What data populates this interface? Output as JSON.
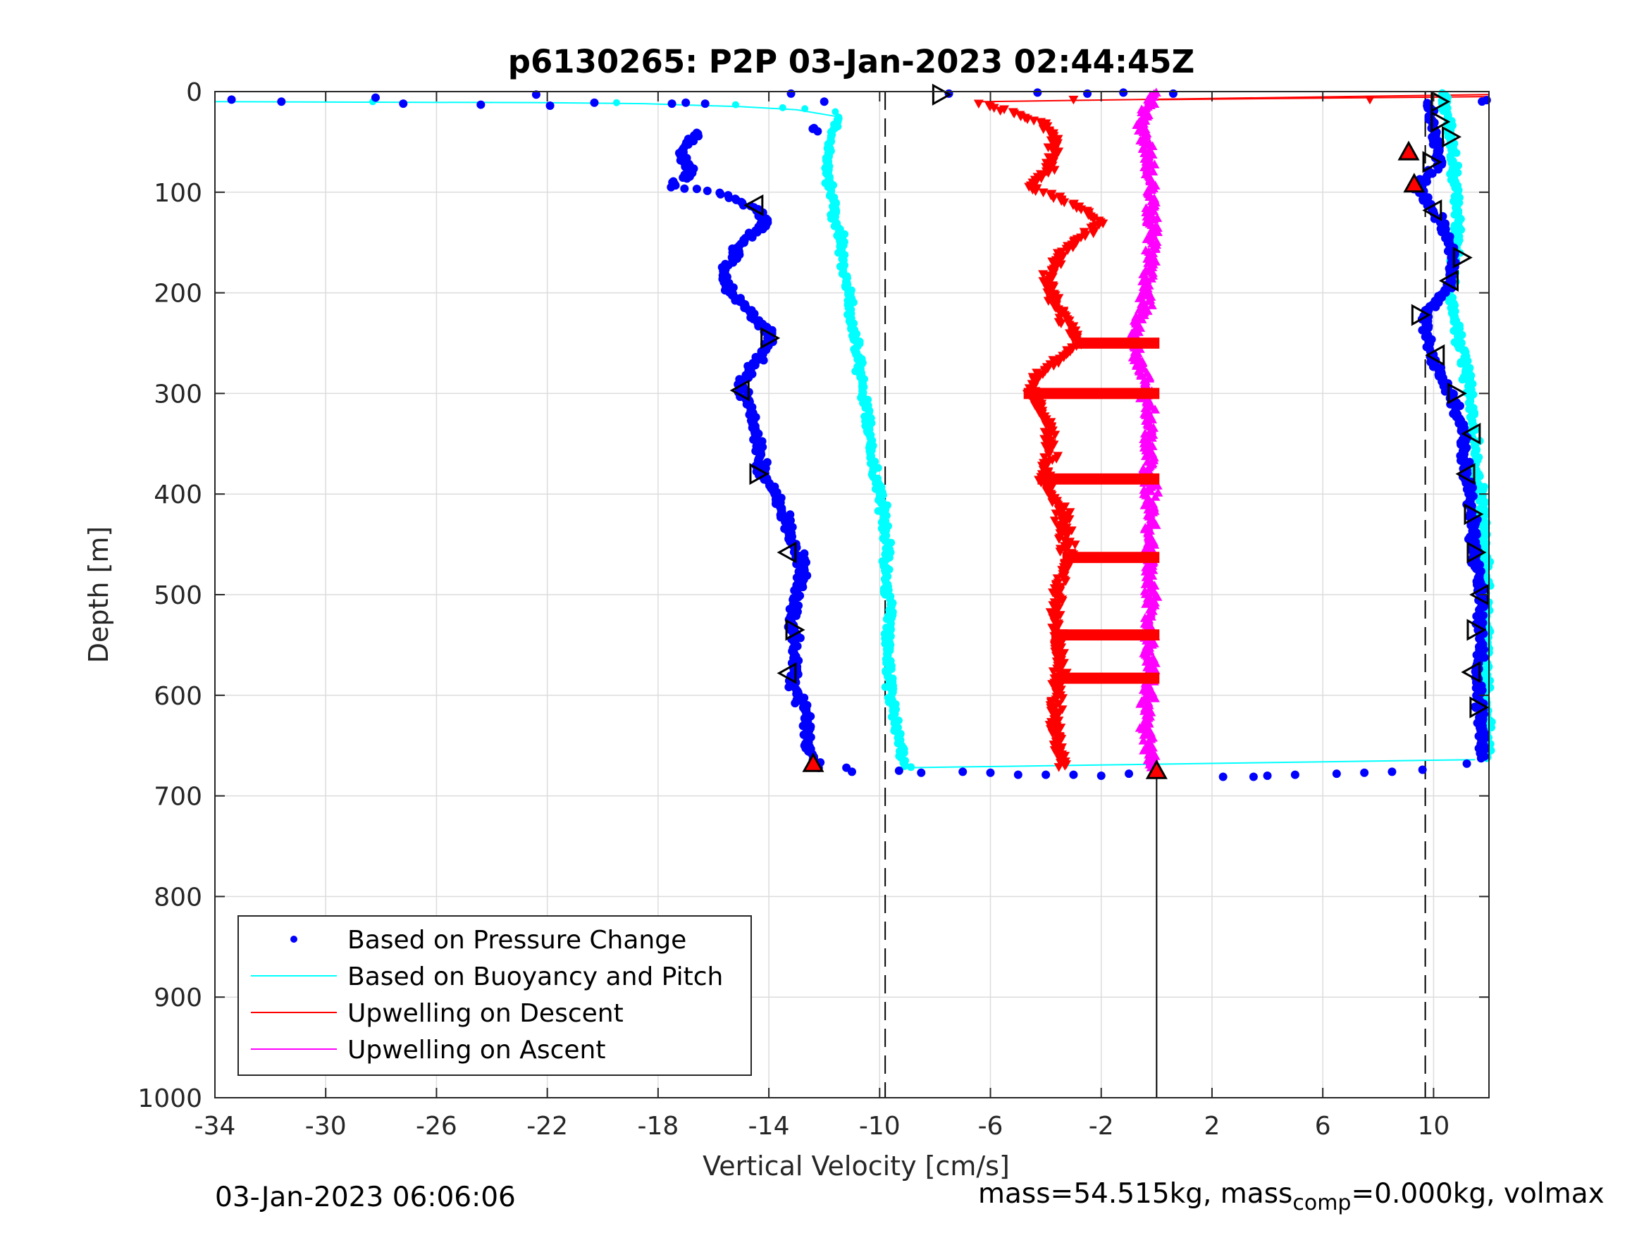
{
  "chart_data": {
    "type": "scatter",
    "title": "p6130265: P2P 03-Jan-2023 02:44:45Z",
    "xlabel": "Vertical Velocity [cm/s]",
    "ylabel": "Depth [m]",
    "xlim": [
      -34,
      12
    ],
    "ylim": [
      0,
      1000
    ],
    "y_reversed": true,
    "grid": true,
    "xticks": [
      -34,
      -30,
      -26,
      -22,
      -18,
      -14,
      -10,
      -6,
      -2,
      2,
      6,
      10
    ],
    "xtick_labels": [
      "-34",
      "-30",
      "-26",
      "-22",
      "-18",
      "-14",
      "-10",
      "-6",
      "-2",
      "2",
      "6",
      "10"
    ],
    "yticks": [
      0,
      100,
      200,
      300,
      400,
      500,
      600,
      700,
      800,
      900,
      1000
    ],
    "ytick_labels": [
      "0",
      "100",
      "200",
      "300",
      "400",
      "500",
      "600",
      "700",
      "800",
      "900",
      "1000"
    ],
    "legend": {
      "placement": "bottom-left",
      "entries": [
        {
          "label": "Based on Pressure Change",
          "color": "#0000ff",
          "marker": "dot"
        },
        {
          "label": "Based on Buoyancy and Pitch",
          "color": "#00ffff",
          "marker": "line"
        },
        {
          "label": "Upwelling on Descent",
          "color": "#ff0000",
          "marker": "line"
        },
        {
          "label": "Upwelling on Ascent",
          "color": "#ff00ff",
          "marker": "line"
        }
      ]
    },
    "reference_lines": {
      "vertical_dashed_x": [
        -9.8,
        9.7
      ],
      "vertical_solid_x": 0,
      "vertical_solid_from_depth": 675
    },
    "series": [
      {
        "name": "Based on Pressure Change",
        "color": "#0000ff",
        "descent_profile": [
          [
            -16.5,
            40
          ],
          [
            -17.2,
            60
          ],
          [
            -16.8,
            80
          ],
          [
            -17.5,
            95
          ],
          [
            -15.8,
            100
          ],
          [
            -14.6,
            115
          ],
          [
            -14.0,
            130
          ],
          [
            -15.0,
            150
          ],
          [
            -15.6,
            180
          ],
          [
            -15.4,
            200
          ],
          [
            -14.6,
            220
          ],
          [
            -13.9,
            245
          ],
          [
            -14.5,
            270
          ],
          [
            -15.0,
            290
          ],
          [
            -14.6,
            320
          ],
          [
            -14.4,
            350
          ],
          [
            -14.2,
            380
          ],
          [
            -13.6,
            410
          ],
          [
            -13.2,
            440
          ],
          [
            -12.8,
            470
          ],
          [
            -13.0,
            500
          ],
          [
            -13.2,
            530
          ],
          [
            -13.0,
            560
          ],
          [
            -13.1,
            590
          ],
          [
            -12.6,
            620
          ],
          [
            -12.6,
            650
          ],
          [
            -12.3,
            670
          ]
        ],
        "ascent_profile": [
          [
            9.8,
            10
          ],
          [
            10.0,
            40
          ],
          [
            10.2,
            70
          ],
          [
            9.4,
            95
          ],
          [
            10.3,
            130
          ],
          [
            10.7,
            165
          ],
          [
            10.6,
            195
          ],
          [
            9.7,
            220
          ],
          [
            9.9,
            260
          ],
          [
            10.6,
            300
          ],
          [
            11.1,
            340
          ],
          [
            11.2,
            380
          ],
          [
            11.4,
            420
          ],
          [
            11.5,
            460
          ],
          [
            11.7,
            500
          ],
          [
            11.7,
            540
          ],
          [
            11.6,
            580
          ],
          [
            11.7,
            620
          ],
          [
            11.8,
            660
          ]
        ],
        "surface_points": [
          [
            -33.4,
            8
          ],
          [
            -31.6,
            10
          ],
          [
            -28.2,
            6
          ],
          [
            -27.2,
            12
          ],
          [
            -24.4,
            13
          ],
          [
            -22.4,
            3
          ],
          [
            -21.9,
            14
          ],
          [
            -13.2,
            2
          ],
          [
            -7.5,
            2
          ],
          [
            -4.3,
            1
          ],
          [
            -2.5,
            2
          ],
          [
            -1.2,
            1
          ],
          [
            0.6,
            2
          ]
        ],
        "bottom_turn_points": [
          [
            -11.2,
            672
          ],
          [
            -9.3,
            675
          ],
          [
            -7.0,
            676
          ],
          [
            -5.0,
            679
          ],
          [
            -3.0,
            679
          ],
          [
            -1.0,
            678
          ],
          [
            2.4,
            681
          ],
          [
            4.0,
            680
          ],
          [
            6.5,
            678
          ],
          [
            8.5,
            676
          ],
          [
            9.6,
            674
          ],
          [
            11.2,
            668
          ]
        ],
        "markers": [
          {
            "shape": "triangle-right",
            "x": -7.8,
            "y": 3
          },
          {
            "shape": "triangle-left",
            "x": -14.5,
            "y": 113
          },
          {
            "shape": "triangle-right",
            "x": -14.0,
            "y": 245
          },
          {
            "shape": "triangle-left",
            "x": -15.0,
            "y": 297
          },
          {
            "shape": "triangle-right",
            "x": -14.4,
            "y": 380
          },
          {
            "shape": "triangle-left",
            "x": -13.3,
            "y": 458
          },
          {
            "shape": "triangle-right",
            "x": -13.1,
            "y": 535
          },
          {
            "shape": "triangle-left",
            "x": -13.3,
            "y": 578
          },
          {
            "shape": "triangle-up-red",
            "x": -12.4,
            "y": 668
          },
          {
            "shape": "triangle-up-red",
            "x": 0,
            "y": 675
          },
          {
            "shape": "triangle-right",
            "x": 10.2,
            "y": 10
          },
          {
            "shape": "triangle-right",
            "x": 10.2,
            "y": 30
          },
          {
            "shape": "triangle-right",
            "x": 10.6,
            "y": 45
          },
          {
            "shape": "triangle-up-red",
            "x": 9.1,
            "y": 60
          },
          {
            "shape": "triangle-right",
            "x": 9.9,
            "y": 70
          },
          {
            "shape": "triangle-up-red",
            "x": 9.3,
            "y": 92
          },
          {
            "shape": "triangle-left",
            "x": 10.0,
            "y": 118
          },
          {
            "shape": "triangle-right",
            "x": 11.0,
            "y": 165
          },
          {
            "shape": "triangle-left",
            "x": 10.6,
            "y": 188
          },
          {
            "shape": "triangle-right",
            "x": 9.5,
            "y": 222
          },
          {
            "shape": "triangle-left",
            "x": 10.1,
            "y": 262
          },
          {
            "shape": "triangle-right",
            "x": 10.8,
            "y": 300
          },
          {
            "shape": "triangle-left",
            "x": 11.4,
            "y": 340
          },
          {
            "shape": "triangle-left",
            "x": 11.2,
            "y": 380
          },
          {
            "shape": "triangle-right",
            "x": 11.4,
            "y": 420
          },
          {
            "shape": "triangle-right",
            "x": 11.5,
            "y": 458
          },
          {
            "shape": "triangle-left",
            "x": 11.7,
            "y": 500
          },
          {
            "shape": "triangle-right",
            "x": 11.5,
            "y": 535
          },
          {
            "shape": "triangle-left",
            "x": 11.4,
            "y": 577
          },
          {
            "shape": "triangle-right",
            "x": 11.6,
            "y": 612
          }
        ]
      },
      {
        "name": "Based on Buoyancy and Pitch",
        "color": "#00ffff",
        "descent_profile": [
          [
            -34.0,
            10
          ],
          [
            -28.5,
            10.5
          ],
          [
            -22.0,
            11
          ],
          [
            -18.5,
            12
          ],
          [
            -15.0,
            15
          ],
          [
            -13.0,
            18
          ],
          [
            -11.5,
            25
          ],
          [
            -11.8,
            50
          ],
          [
            -11.9,
            80
          ],
          [
            -11.7,
            110
          ],
          [
            -11.4,
            150
          ],
          [
            -11.2,
            190
          ],
          [
            -11.0,
            230
          ],
          [
            -10.7,
            280
          ],
          [
            -10.4,
            330
          ],
          [
            -10.2,
            380
          ],
          [
            -9.9,
            410
          ],
          [
            -9.7,
            450
          ],
          [
            -9.8,
            480
          ],
          [
            -9.6,
            520
          ],
          [
            -9.7,
            560
          ],
          [
            -9.6,
            600
          ],
          [
            -9.4,
            630
          ],
          [
            -9.2,
            660
          ],
          [
            -9.0,
            672
          ]
        ],
        "bottom_turn": [
          [
            -9.0,
            672
          ],
          [
            11.5,
            664
          ]
        ],
        "ascent_profile": [
          [
            10.3,
            0
          ],
          [
            10.6,
            40
          ],
          [
            10.7,
            80
          ],
          [
            10.9,
            120
          ],
          [
            10.8,
            160
          ],
          [
            10.6,
            200
          ],
          [
            10.9,
            240
          ],
          [
            11.2,
            280
          ],
          [
            11.4,
            320
          ],
          [
            11.5,
            360
          ],
          [
            11.7,
            400
          ],
          [
            11.8,
            450
          ],
          [
            11.9,
            500
          ],
          [
            11.9,
            560
          ],
          [
            11.9,
            620
          ],
          [
            11.9,
            664
          ]
        ]
      },
      {
        "name": "Upwelling on Descent",
        "color": "#ff0000",
        "profile": [
          [
            -6.3,
            12
          ],
          [
            -4.2,
            30
          ],
          [
            -3.6,
            50
          ],
          [
            -3.9,
            80
          ],
          [
            -4.6,
            95
          ],
          [
            -3.2,
            110
          ],
          [
            -2.0,
            130
          ],
          [
            -3.4,
            160
          ],
          [
            -4.0,
            190
          ],
          [
            -3.5,
            220
          ],
          [
            -2.7,
            250
          ],
          [
            -4.2,
            280
          ],
          [
            -4.6,
            300
          ],
          [
            -3.9,
            330
          ],
          [
            -3.8,
            360
          ],
          [
            -4.1,
            385
          ],
          [
            -3.4,
            420
          ],
          [
            -3.2,
            463
          ],
          [
            -3.6,
            500
          ],
          [
            -3.6,
            540
          ],
          [
            -3.5,
            583
          ],
          [
            -3.7,
            620
          ],
          [
            -3.6,
            650
          ],
          [
            -3.4,
            672
          ]
        ],
        "surface_line": [
          [
            -6.3,
            10
          ],
          [
            12,
            3
          ]
        ],
        "surface_line_2": [
          [
            0,
            8
          ],
          [
            12,
            5
          ]
        ],
        "surface_markers": [
          [
            -3.0,
            8
          ],
          [
            7.7,
            8
          ]
        ],
        "horizontal_bands_y": [
          250,
          300,
          385,
          463,
          540,
          583
        ]
      },
      {
        "name": "Upwelling on Ascent",
        "color": "#ff00ff",
        "profile": [
          [
            -0.1,
            0
          ],
          [
            -0.5,
            30
          ],
          [
            -0.3,
            60
          ],
          [
            -0.2,
            100
          ],
          [
            -0.1,
            140
          ],
          [
            -0.3,
            180
          ],
          [
            -0.5,
            220
          ],
          [
            -0.9,
            250
          ],
          [
            -0.4,
            290
          ],
          [
            -0.2,
            330
          ],
          [
            -0.3,
            380
          ],
          [
            -0.2,
            420
          ],
          [
            -0.3,
            460
          ],
          [
            -0.2,
            500
          ],
          [
            -0.3,
            540
          ],
          [
            -0.2,
            580
          ],
          [
            -0.4,
            620
          ],
          [
            -0.2,
            660
          ],
          [
            -0.1,
            672
          ]
        ]
      }
    ]
  },
  "footer": {
    "timestamp": "03-Jan-2023 06:06:06",
    "mass_text_1": "mass=54.515kg, mass",
    "mass_sub": "comp",
    "mass_text_2": "=0.000kg, volmax"
  }
}
